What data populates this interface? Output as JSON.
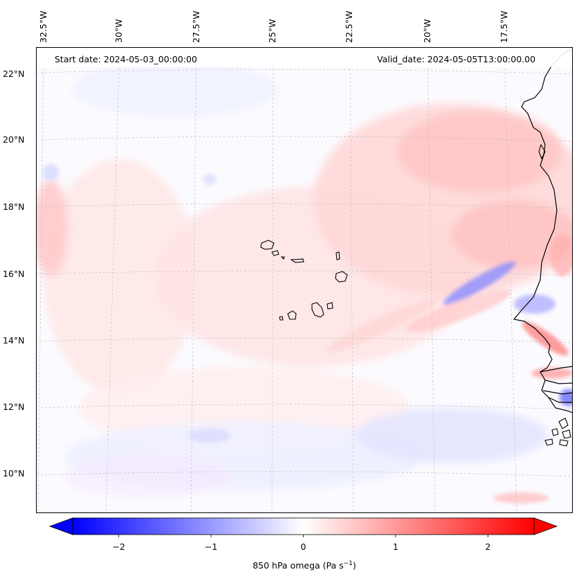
{
  "map": {
    "start_date": "Start date: 2024-05-03_00:00:00",
    "valid_date": "Valid_date: 2024-05-05T13:00:00.00",
    "longitude_labels": [
      "32.5°W",
      "30°W",
      "27.5°W",
      "25°W",
      "22.5°W",
      "20°W",
      "17.5°W"
    ],
    "latitude_labels": [
      "22°N",
      "20°N",
      "18°N",
      "16°N",
      "14°N",
      "12°N",
      "10°N"
    ],
    "variable": "850 hPa omega",
    "units": "Pa s⁻¹"
  },
  "colorbar": {
    "label_prefix": "850 hPa omega (Pa s",
    "label_exp": "−1",
    "label_suffix": ")",
    "ticks": [
      "−2",
      "−1",
      "0",
      "1",
      "2"
    ],
    "tick_values": [
      -2,
      -1,
      0,
      1,
      2
    ],
    "range": [
      -2.5,
      2.5
    ],
    "min_color": "#0000ff",
    "mid_color": "#ffffff",
    "max_color": "#ff0000",
    "extend": "both"
  }
}
